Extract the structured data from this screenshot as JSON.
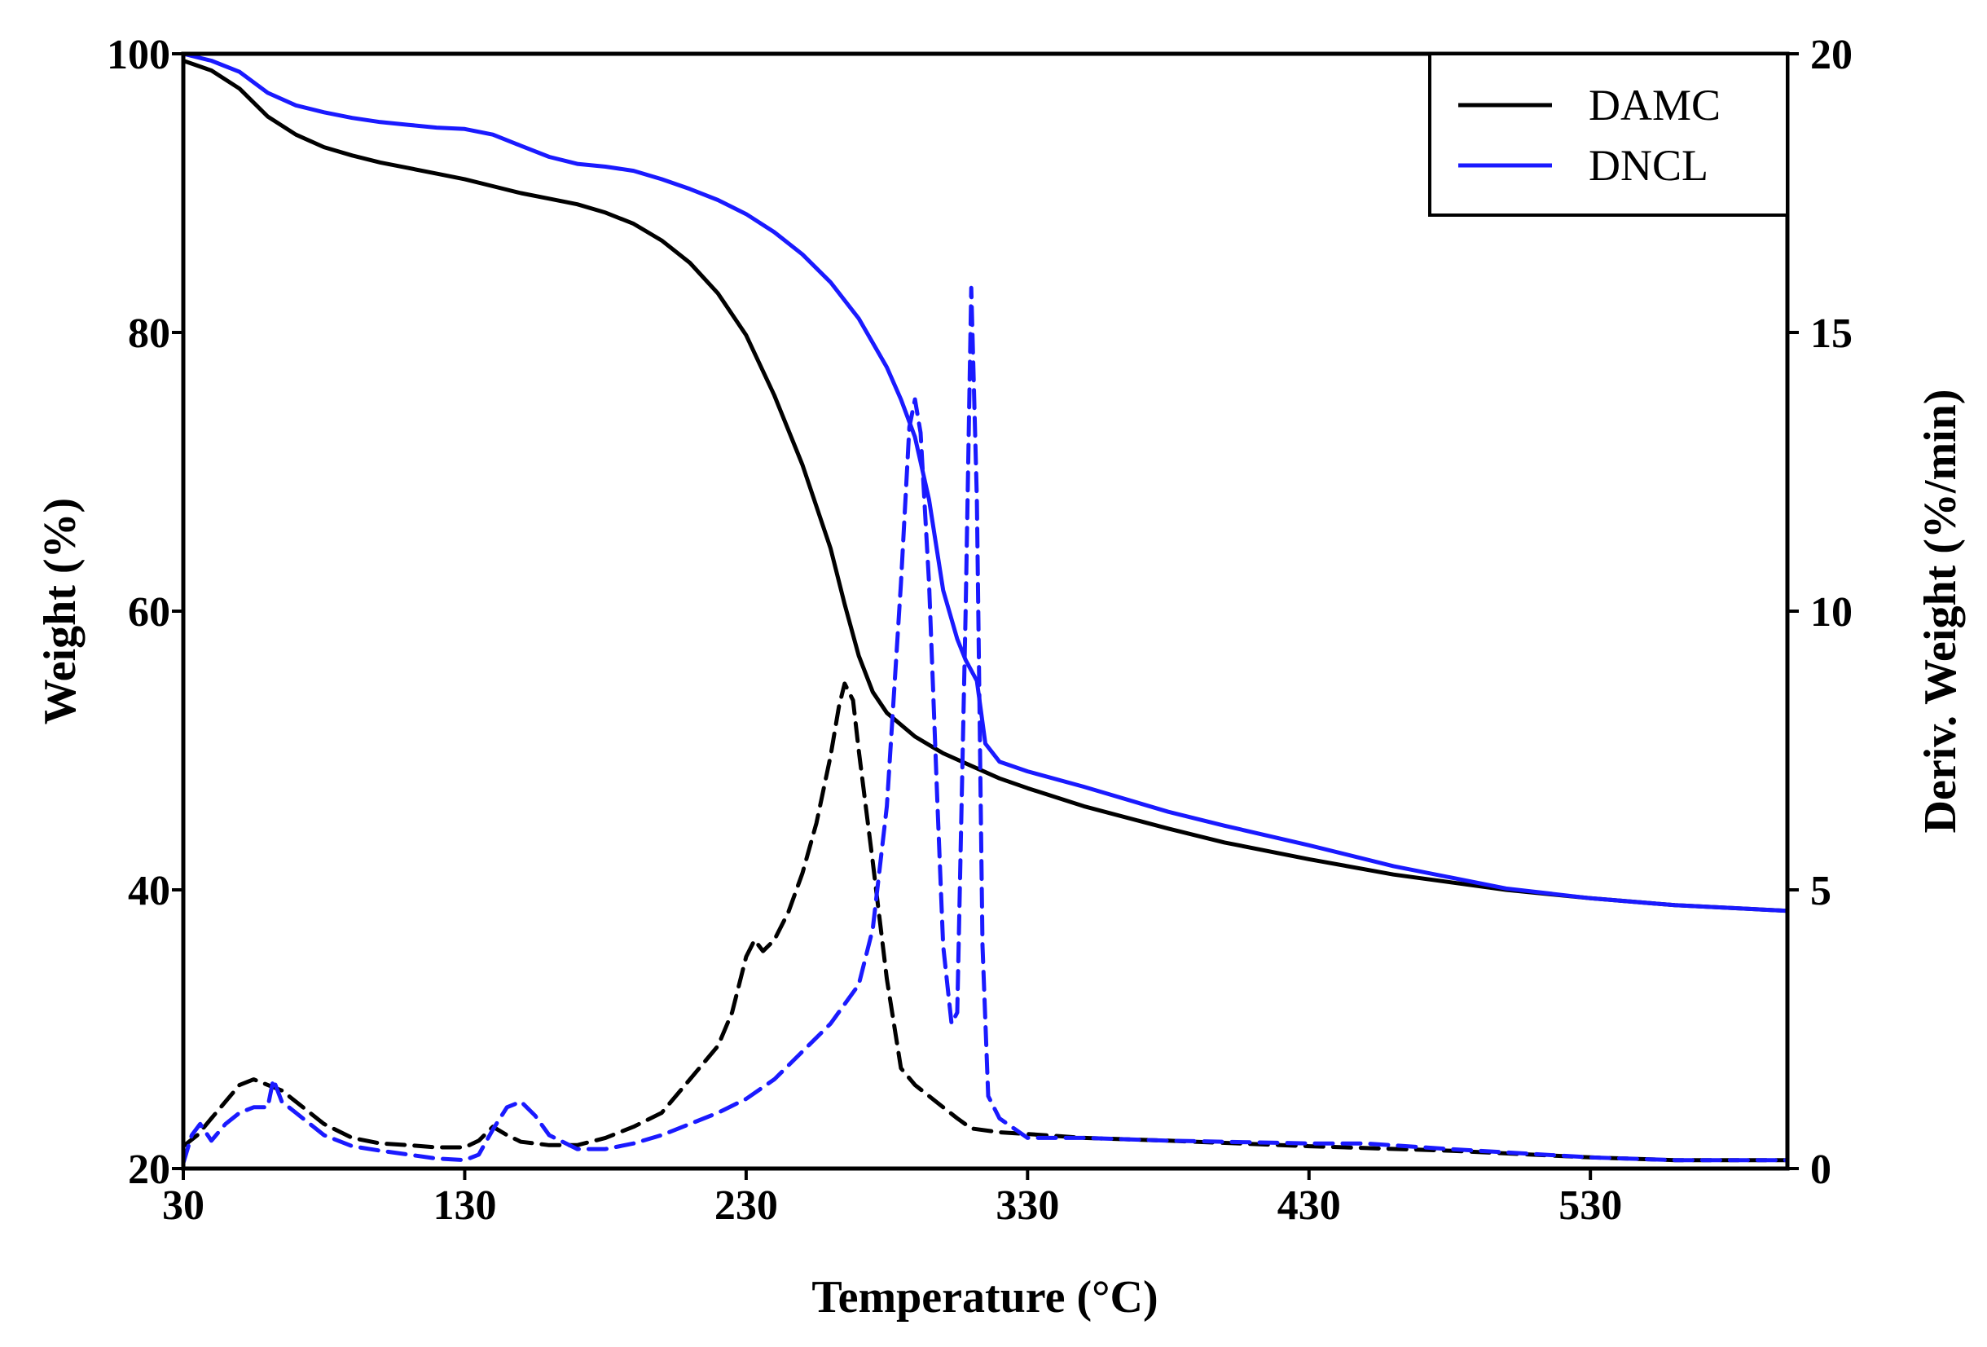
{
  "chart_data": {
    "type": "line",
    "title": "",
    "xlabel": "Temperature (°C)",
    "ylabel_left": "Weight (%)",
    "ylabel_right": "Deriv. Weight (%/min)",
    "xlim": [
      30,
      600
    ],
    "ylim_left": [
      20,
      100
    ],
    "ylim_right": [
      0,
      20
    ],
    "x_ticks": [
      30,
      130,
      230,
      330,
      430,
      530
    ],
    "x_tick_labels": [
      "30",
      "130",
      "230",
      "330",
      "430",
      "530"
    ],
    "y_left_ticks": [
      20,
      40,
      60,
      80,
      100
    ],
    "y_left_tick_labels": [
      "20",
      "40",
      "60",
      "80",
      "100"
    ],
    "y_right_ticks": [
      0,
      5,
      10,
      15,
      20
    ],
    "y_right_tick_labels": [
      "0",
      "5",
      "10",
      "15",
      "20"
    ],
    "grid": false,
    "legend_position": "top-right",
    "legend": [
      {
        "name": "DAMC",
        "color": "#000000"
      },
      {
        "name": "DNCL",
        "color": "#1a1aff"
      }
    ],
    "series": [
      {
        "name": "DAMC",
        "kind": "weight",
        "axis": "left",
        "color": "#000000",
        "dash": "solid",
        "x": [
          30,
          40,
          50,
          60,
          70,
          80,
          90,
          100,
          110,
          120,
          130,
          140,
          150,
          160,
          170,
          180,
          190,
          200,
          210,
          220,
          230,
          240,
          250,
          260,
          265,
          270,
          275,
          280,
          290,
          300,
          310,
          320,
          330,
          350,
          380,
          400,
          430,
          460,
          500,
          530,
          560,
          600
        ],
        "y": [
          99.5,
          98.8,
          97.5,
          95.5,
          94.2,
          93.3,
          92.7,
          92.2,
          91.8,
          91.4,
          91.0,
          90.5,
          90.0,
          89.6,
          89.2,
          88.6,
          87.8,
          86.6,
          85.0,
          82.8,
          79.8,
          75.5,
          70.5,
          64.5,
          60.5,
          56.8,
          54.2,
          52.7,
          51.0,
          49.8,
          48.9,
          48.0,
          47.3,
          46.0,
          44.4,
          43.4,
          42.2,
          41.1,
          40.0,
          39.4,
          38.9,
          38.5
        ]
      },
      {
        "name": "DNCL",
        "kind": "weight",
        "axis": "left",
        "color": "#1a1aff",
        "dash": "solid",
        "x": [
          30,
          40,
          50,
          60,
          70,
          80,
          90,
          100,
          110,
          120,
          130,
          140,
          150,
          160,
          170,
          180,
          190,
          200,
          210,
          220,
          230,
          240,
          250,
          260,
          270,
          280,
          285,
          290,
          295,
          300,
          305,
          308,
          312,
          315,
          320,
          330,
          350,
          380,
          400,
          430,
          460,
          500,
          530,
          560,
          600
        ],
        "y": [
          100.0,
          99.5,
          98.7,
          97.2,
          96.3,
          95.8,
          95.4,
          95.1,
          94.9,
          94.7,
          94.6,
          94.2,
          93.4,
          92.6,
          92.1,
          91.9,
          91.6,
          91.0,
          90.3,
          89.5,
          88.5,
          87.2,
          85.6,
          83.6,
          81.0,
          77.5,
          75.2,
          72.5,
          68.0,
          61.5,
          58.0,
          56.5,
          55.0,
          50.5,
          49.2,
          48.5,
          47.4,
          45.6,
          44.6,
          43.2,
          41.7,
          40.1,
          39.4,
          38.9,
          38.5
        ]
      },
      {
        "name": "DAMC",
        "kind": "derivative",
        "axis": "right",
        "color": "#000000",
        "dash": "dashed",
        "x": [
          30,
          35,
          40,
          45,
          50,
          55,
          60,
          65,
          70,
          80,
          90,
          100,
          110,
          120,
          130,
          135,
          140,
          145,
          150,
          160,
          170,
          180,
          190,
          200,
          205,
          210,
          215,
          220,
          225,
          230,
          233,
          236,
          240,
          245,
          250,
          255,
          260,
          263,
          265,
          268,
          270,
          275,
          280,
          285,
          290,
          295,
          300,
          305,
          310,
          320,
          330,
          350,
          380,
          430,
          480,
          530,
          560,
          600
        ],
        "y": [
          0.4,
          0.6,
          0.9,
          1.2,
          1.5,
          1.6,
          1.5,
          1.4,
          1.2,
          0.8,
          0.55,
          0.45,
          0.42,
          0.38,
          0.38,
          0.5,
          0.75,
          0.6,
          0.48,
          0.42,
          0.42,
          0.55,
          0.75,
          1.0,
          1.3,
          1.6,
          1.9,
          2.2,
          2.8,
          3.8,
          4.1,
          3.9,
          4.1,
          4.6,
          5.3,
          6.2,
          7.4,
          8.3,
          8.7,
          8.4,
          7.5,
          5.5,
          3.4,
          1.8,
          1.5,
          1.3,
          1.1,
          0.9,
          0.72,
          0.65,
          0.62,
          0.55,
          0.5,
          0.4,
          0.32,
          0.2,
          0.15,
          0.15
        ]
      },
      {
        "name": "DNCL",
        "kind": "derivative",
        "axis": "right",
        "color": "#1a1aff",
        "dash": "dashed",
        "x": [
          30,
          33,
          36,
          40,
          45,
          50,
          55,
          60,
          62,
          65,
          70,
          80,
          90,
          100,
          110,
          120,
          130,
          135,
          140,
          145,
          150,
          155,
          160,
          170,
          180,
          190,
          200,
          210,
          220,
          230,
          240,
          250,
          260,
          270,
          275,
          280,
          285,
          288,
          290,
          292,
          295,
          298,
          300,
          303,
          305,
          308,
          310,
          312,
          314,
          316,
          320,
          330,
          350,
          380,
          430,
          450,
          480,
          530,
          560,
          600
        ],
        "y": [
          0.1,
          0.6,
          0.8,
          0.5,
          0.8,
          1.0,
          1.1,
          1.1,
          1.6,
          1.2,
          1.0,
          0.6,
          0.4,
          0.32,
          0.25,
          0.18,
          0.15,
          0.25,
          0.7,
          1.1,
          1.2,
          0.95,
          0.6,
          0.35,
          0.35,
          0.45,
          0.6,
          0.8,
          1.0,
          1.25,
          1.6,
          2.1,
          2.6,
          3.3,
          4.3,
          6.5,
          10.5,
          13.3,
          13.8,
          13.2,
          10.5,
          6.5,
          4.0,
          2.6,
          2.8,
          10.0,
          15.8,
          12.0,
          4.0,
          1.3,
          0.9,
          0.55,
          0.55,
          0.5,
          0.45,
          0.45,
          0.35,
          0.2,
          0.15,
          0.15
        ]
      }
    ]
  }
}
